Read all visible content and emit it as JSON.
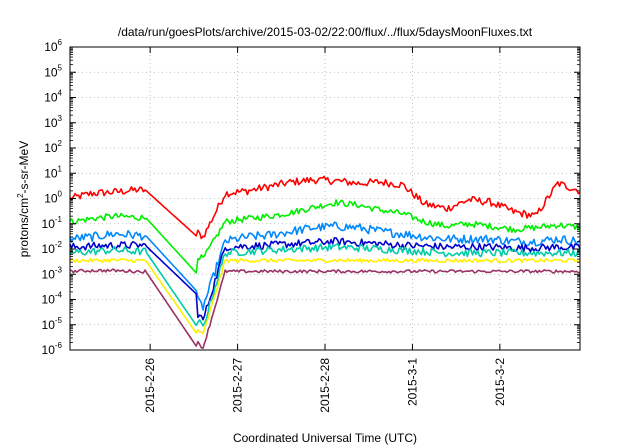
{
  "chart_data": {
    "type": "line",
    "title": "/data/run/goesPlots/archive/2015-03-02/22:00/flux/../flux/5daysMoonFluxes.txt",
    "xlabel": "Coordinated Universal Time (UTC)",
    "ylabel": {
      "prefix": "protons/cm",
      "sup": "2",
      "suffix": "-s-sr-MeV"
    },
    "y_scale": "log",
    "ylim": [
      1e-06,
      1000000.0
    ],
    "y_ticks": [
      {
        "value": 1e-06,
        "base": "10",
        "exp": "-6"
      },
      {
        "value": 1e-05,
        "base": "10",
        "exp": "-5"
      },
      {
        "value": 0.0001,
        "base": "10",
        "exp": "-4"
      },
      {
        "value": 0.001,
        "base": "10",
        "exp": "-3"
      },
      {
        "value": 0.01,
        "base": "10",
        "exp": "-2"
      },
      {
        "value": 0.1,
        "base": "10",
        "exp": "-1"
      },
      {
        "value": 1,
        "base": "10",
        "exp": "0"
      },
      {
        "value": 10,
        "base": "10",
        "exp": "1"
      },
      {
        "value": 100,
        "base": "10",
        "exp": "2"
      },
      {
        "value": 1000,
        "base": "10",
        "exp": "3"
      },
      {
        "value": 10000.0,
        "base": "10",
        "exp": "4"
      },
      {
        "value": 100000.0,
        "base": "10",
        "exp": "5"
      },
      {
        "value": 1000000.0,
        "base": "10",
        "exp": "6"
      }
    ],
    "xlim": [
      "2015-02-25T02:00",
      "2015-03-02T22:00"
    ],
    "x_ticks": [
      {
        "value": "2015-02-26T00:00",
        "label": "2015-2-26"
      },
      {
        "value": "2015-02-27T00:00",
        "label": "2015-2-27"
      },
      {
        "value": "2015-02-28T00:00",
        "label": "2015-2-28"
      },
      {
        "value": "2015-03-01T00:00",
        "label": "2015-3-1"
      },
      {
        "value": "2015-03-02T00:00",
        "label": "2015-3-2"
      }
    ],
    "grid": true,
    "series": [
      {
        "color": "#ff0000",
        "base": [
          1.0,
          1.6,
          1.8,
          2.2,
          2.0,
          0.15,
          0.03,
          1.6,
          2.0,
          3.0,
          4.5,
          5.5,
          5.0,
          4.0,
          4.5,
          3.5,
          0.6,
          0.4,
          0.9,
          0.7,
          0.3,
          0.2,
          4.0,
          2.0
        ],
        "dip": 0.03,
        "noise": 0.3
      },
      {
        "color": "#00ee00",
        "base": [
          0.12,
          0.16,
          0.2,
          0.18,
          0.16,
          0.015,
          0.004,
          0.12,
          0.16,
          0.2,
          0.28,
          0.45,
          0.7,
          0.55,
          0.35,
          0.25,
          0.12,
          0.08,
          0.1,
          0.08,
          0.06,
          0.07,
          0.09,
          0.07
        ],
        "dip": 0.001,
        "noise": 0.25
      },
      {
        "color": "#0088ff",
        "base": [
          0.025,
          0.03,
          0.04,
          0.035,
          0.03,
          0.0005,
          5e-05,
          0.02,
          0.03,
          0.035,
          0.05,
          0.07,
          0.08,
          0.07,
          0.05,
          0.04,
          0.03,
          0.025,
          0.025,
          0.025,
          0.02,
          0.02,
          0.025,
          0.02
        ],
        "dip": 0.0002,
        "noise": 0.35
      },
      {
        "color": "#0000cc",
        "base": [
          0.012,
          0.013,
          0.014,
          0.014,
          0.013,
          0.0002,
          1.5e-05,
          0.012,
          0.013,
          0.014,
          0.016,
          0.018,
          0.02,
          0.018,
          0.016,
          0.014,
          0.013,
          0.012,
          0.012,
          0.012,
          0.011,
          0.011,
          0.012,
          0.011
        ],
        "dip": 0.00015,
        "noise": 0.3
      },
      {
        "color": "#00ccaa",
        "base": [
          0.007,
          0.008,
          0.009,
          0.008,
          0.008,
          0.0001,
          8e-06,
          0.007,
          0.008,
          0.009,
          0.01,
          0.011,
          0.012,
          0.011,
          0.01,
          0.009,
          0.008,
          0.007,
          0.007,
          0.007,
          0.007,
          0.007,
          0.007,
          0.007
        ],
        "dip": 8e-06,
        "noise": 0.3
      },
      {
        "color": "#ffee00",
        "base": [
          0.0035,
          0.0035,
          0.0036,
          0.0035,
          0.0035,
          3e-05,
          4e-06,
          0.0035,
          0.0035,
          0.0035,
          0.0035,
          0.0035,
          0.0036,
          0.0035,
          0.0035,
          0.0035,
          0.0035,
          0.0035,
          0.0035,
          0.0035,
          0.0035,
          0.0035,
          0.0035,
          0.0035
        ],
        "dip": 4e-06,
        "noise": 0.15
      },
      {
        "color": "#993366",
        "base": [
          0.0013,
          0.0014,
          0.0014,
          0.0013,
          0.0013,
          1e-05,
          1.2e-06,
          0.0013,
          0.0013,
          0.0013,
          0.0013,
          0.0013,
          0.0013,
          0.0013,
          0.0013,
          0.0013,
          0.0013,
          0.0013,
          0.0013,
          0.0013,
          0.0013,
          0.0013,
          0.0013,
          0.0013
        ],
        "dip": 1.2e-06,
        "noise": 0.12
      }
    ]
  }
}
